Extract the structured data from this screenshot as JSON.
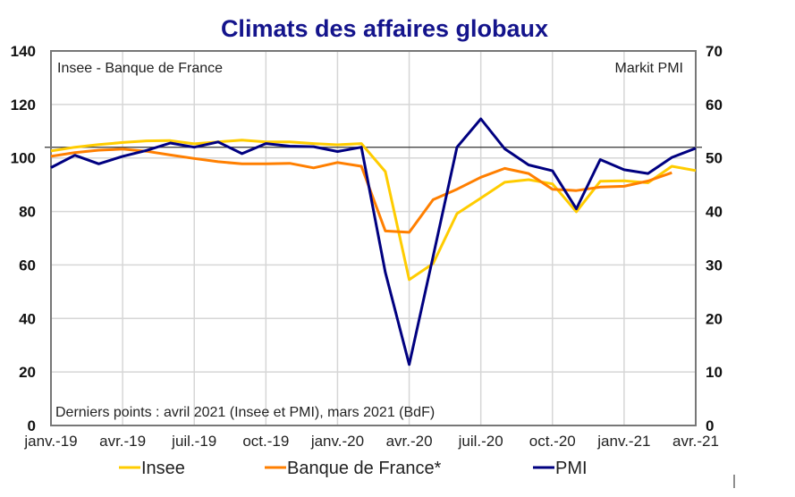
{
  "chart_data": {
    "type": "line",
    "title": "Climats des affaires globaux",
    "left_axis_label": "Insee - Banque de France",
    "right_axis_label": "Markit PMI",
    "note": "Derniers points : avril 2021 (Insee et PMI), mars 2021 (BdF)",
    "ylim_left": [
      0,
      140
    ],
    "yticks_left": [
      "0",
      "20",
      "40",
      "60",
      "80",
      "100",
      "120",
      "140"
    ],
    "ylim_right": [
      0,
      70
    ],
    "yticks_right": [
      "0",
      "10",
      "20",
      "30",
      "40",
      "50",
      "60",
      "70"
    ],
    "x_months": [
      "2019-01",
      "2019-02",
      "2019-03",
      "2019-04",
      "2019-05",
      "2019-06",
      "2019-07",
      "2019-08",
      "2019-09",
      "2019-10",
      "2019-11",
      "2019-12",
      "2020-01",
      "2020-02",
      "2020-03",
      "2020-04",
      "2020-05",
      "2020-06",
      "2020-07",
      "2020-08",
      "2020-09",
      "2020-10",
      "2020-11",
      "2020-12",
      "2021-01",
      "2021-02",
      "2021-03",
      "2021-04"
    ],
    "xtick_labels": [
      "janv.-19",
      "avr.-19",
      "juil.-19",
      "oct.-19",
      "janv.-20",
      "avr.-20",
      "juil.-20",
      "oct.-20",
      "janv.-21",
      "avr.-21"
    ],
    "grid": true,
    "reference_line_right": 52,
    "legend_position": "bottom",
    "series": [
      {
        "name": "Insee",
        "axis": "left",
        "color": "#FFCC00",
        "values": [
          102.6,
          104,
          105,
          105.8,
          106.4,
          106.5,
          105.3,
          106,
          106.7,
          106,
          106,
          105.4,
          104.9,
          105.4,
          94.9,
          54.5,
          60.5,
          79.2,
          85,
          90.9,
          91.9,
          90.3,
          79.9,
          91.3,
          91.5,
          90.7,
          96.9,
          95.3
        ]
      },
      {
        "name": "Banque de France*",
        "axis": "left",
        "color": "#FF7F00",
        "values": [
          100.6,
          102,
          102.9,
          103.3,
          102.5,
          101.1,
          99.8,
          98.6,
          97.8,
          97.8,
          98,
          96.3,
          98.3,
          96.9,
          72.7,
          72.2,
          84.4,
          88.3,
          92.8,
          96.1,
          94.2,
          88.3,
          87.8,
          89.1,
          89.4,
          91.4,
          94.5
        ]
      },
      {
        "name": "PMI",
        "axis": "right",
        "color": "#000080",
        "values": [
          48.2,
          50.5,
          48.9,
          50.3,
          51.4,
          52.8,
          52,
          53,
          50.8,
          52.7,
          52.2,
          52.1,
          51.2,
          52,
          28.6,
          11.4,
          31.6,
          52,
          57.3,
          51.7,
          48.7,
          47.6,
          40.5,
          49.7,
          47.8,
          47.1,
          50.1,
          51.8
        ]
      }
    ],
    "title_color": "#14148C"
  }
}
